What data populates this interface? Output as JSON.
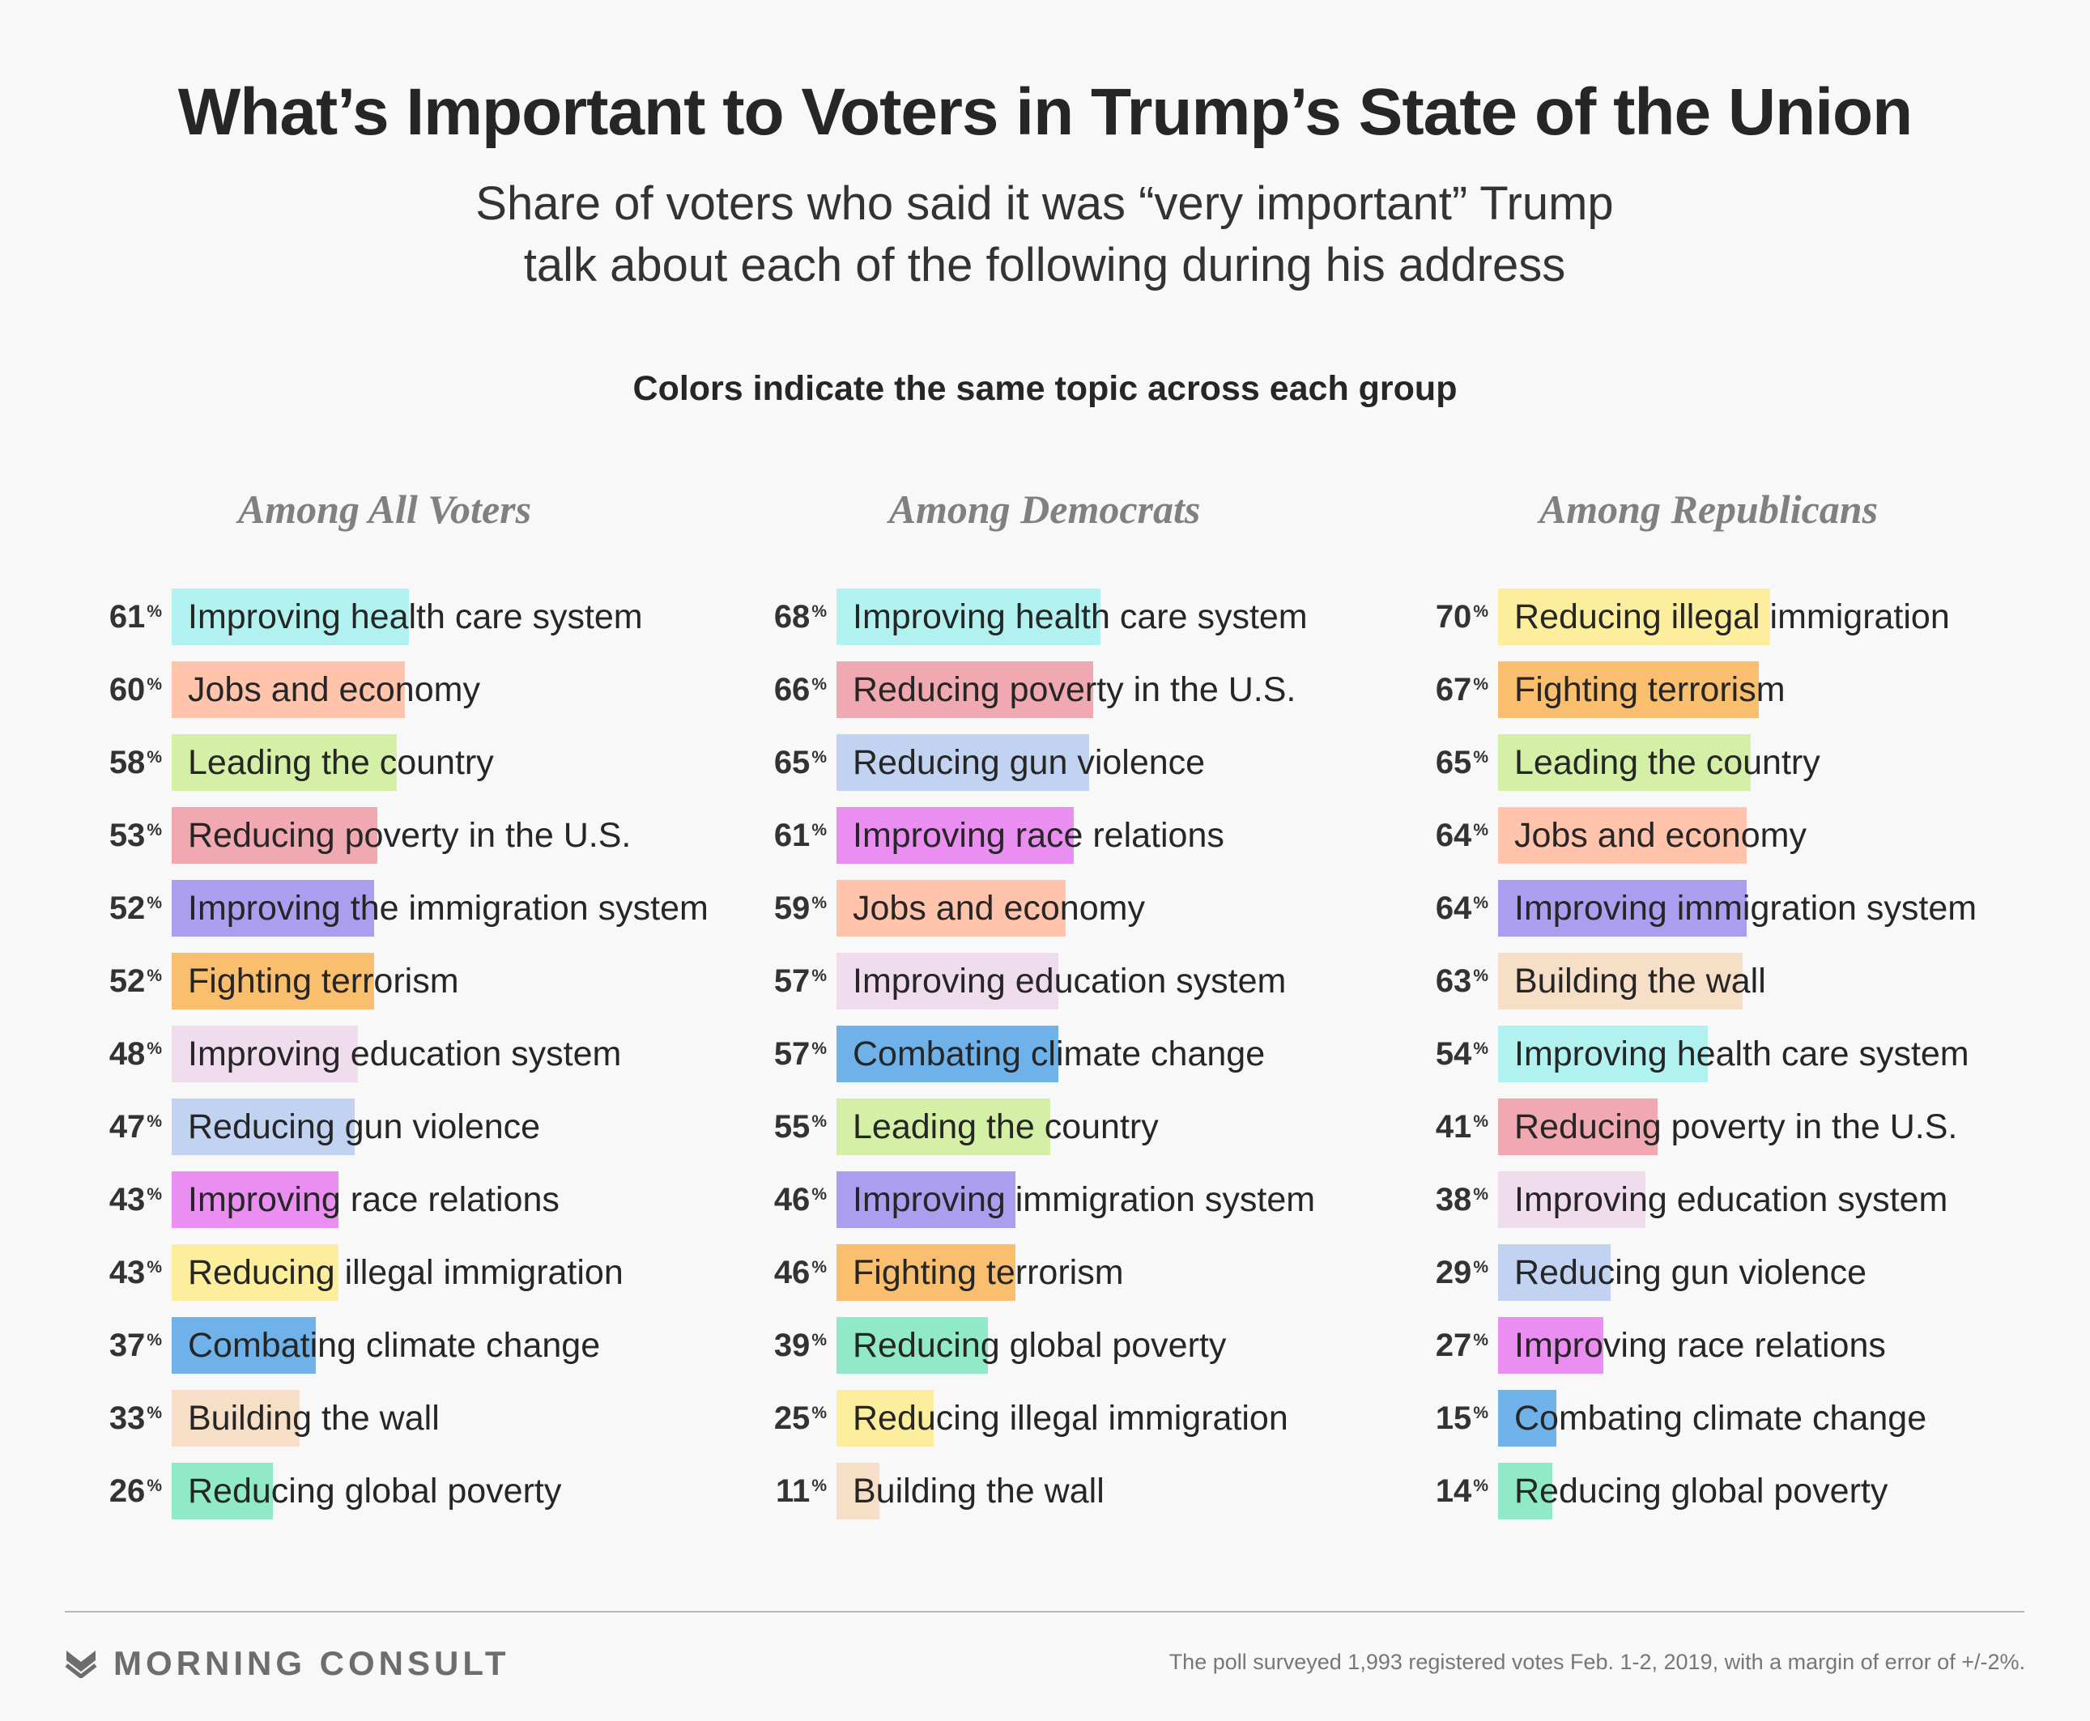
{
  "title": "What’s Important to Voters in Trump’s State of the Union",
  "subtitle_line1": "Share of voters who said it was “very important” Trump",
  "subtitle_line2": "talk about each of the following during his address",
  "note": "Colors indicate the same topic across each group",
  "footer": {
    "brand": "MORNING CONSULT",
    "footnote": "The poll surveyed 1,993 registered votes Feb. 1-2, 2019, with a margin of error of +/-2%."
  },
  "colors": {
    "health": "#b1f1ef",
    "jobs": "#ffc4ab",
    "leading": "#d4f0a6",
    "poverty_us": "#f0a8b1",
    "immigration_system": "#ab9eef",
    "terrorism": "#f9bf6f",
    "education": "#efdcec",
    "gun": "#c1d3f1",
    "race": "#ea8ff1",
    "illegal": "#fcee9c",
    "climate": "#6fb2ea",
    "wall": "#f6dfc6",
    "global_poverty": "#90eac7"
  },
  "chart_data": [
    {
      "type": "bar",
      "group": "Among All Voters",
      "unit": "%",
      "categories": [
        "Improving health care system",
        "Jobs and economy",
        "Leading the country",
        "Reducing poverty in the U.S.",
        "Improving the immigration system",
        "Fighting terrorism",
        "Improving education system",
        "Reducing gun violence",
        "Improving race relations",
        "Reducing illegal immigration",
        "Combating climate change",
        "Building the wall",
        "Reducing global poverty"
      ],
      "topics": [
        "health",
        "jobs",
        "leading",
        "poverty_us",
        "immigration_system",
        "terrorism",
        "education",
        "gun",
        "race",
        "illegal",
        "climate",
        "wall",
        "global_poverty"
      ],
      "values": [
        61,
        60,
        58,
        53,
        52,
        52,
        48,
        47,
        43,
        43,
        37,
        33,
        26
      ]
    },
    {
      "type": "bar",
      "group": "Among Democrats",
      "unit": "%",
      "categories": [
        "Improving health care system",
        "Reducing poverty in the U.S.",
        "Reducing gun violence",
        "Improving race relations",
        "Jobs and economy",
        "Improving education system",
        "Combating climate change",
        "Leading the country",
        "Improving immigration system",
        "Fighting terrorism",
        "Reducing global poverty",
        "Reducing illegal immigration",
        "Building the wall"
      ],
      "topics": [
        "health",
        "poverty_us",
        "gun",
        "race",
        "jobs",
        "education",
        "climate",
        "leading",
        "immigration_system",
        "terrorism",
        "global_poverty",
        "illegal",
        "wall"
      ],
      "values": [
        68,
        66,
        65,
        61,
        59,
        57,
        57,
        55,
        46,
        46,
        39,
        25,
        11
      ]
    },
    {
      "type": "bar",
      "group": "Among Republicans",
      "unit": "%",
      "categories": [
        "Reducing illegal immigration",
        "Fighting terrorism",
        "Leading the country",
        "Jobs and economy",
        "Improving immigration system",
        "Building the wall",
        "Improving health care system",
        "Reducing poverty in the U.S.",
        "Improving education system",
        "Reducing gun violence",
        "Improving race relations",
        "Combating climate change",
        "Reducing global poverty"
      ],
      "topics": [
        "illegal",
        "terrorism",
        "leading",
        "jobs",
        "immigration_system",
        "wall",
        "health",
        "poverty_us",
        "education",
        "gun",
        "race",
        "climate",
        "global_poverty"
      ],
      "values": [
        70,
        67,
        65,
        64,
        64,
        63,
        54,
        41,
        38,
        29,
        27,
        15,
        14
      ]
    }
  ]
}
